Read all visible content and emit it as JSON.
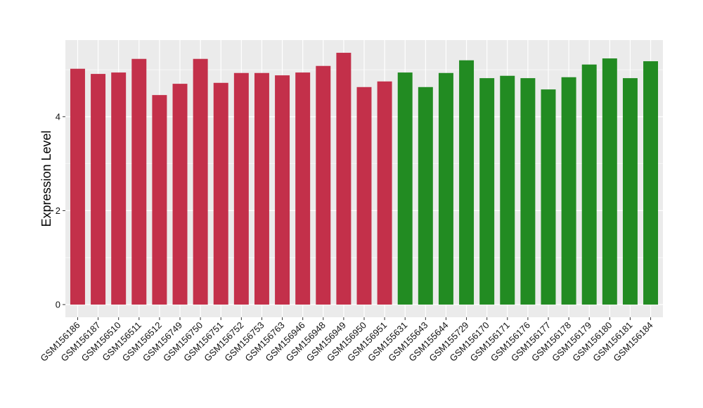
{
  "chart_data": {
    "type": "bar",
    "title": "",
    "xlabel": "",
    "ylabel": "Expression Level",
    "ylim": [
      -0.27,
      5.63
    ],
    "yticks": [
      0,
      2,
      4
    ],
    "grid": true,
    "legend": "none",
    "categories": [
      "GSM156186",
      "GSM156187",
      "GSM156510",
      "GSM156511",
      "GSM156512",
      "GSM156749",
      "GSM156750",
      "GSM156751",
      "GSM156752",
      "GSM156753",
      "GSM156763",
      "GSM156946",
      "GSM156948",
      "GSM156949",
      "GSM156950",
      "GSM156951",
      "GSM155631",
      "GSM155643",
      "GSM155644",
      "GSM155729",
      "GSM156170",
      "GSM156171",
      "GSM156176",
      "GSM156177",
      "GSM156178",
      "GSM156179",
      "GSM156180",
      "GSM156181",
      "GSM156184"
    ],
    "values": [
      5.02,
      4.91,
      4.94,
      5.23,
      4.46,
      4.7,
      5.23,
      4.72,
      4.93,
      4.93,
      4.88,
      4.94,
      5.08,
      5.36,
      4.63,
      4.75,
      4.94,
      4.63,
      4.93,
      5.2,
      4.82,
      4.87,
      4.82,
      4.58,
      4.84,
      5.11,
      5.24,
      4.82,
      5.18
    ],
    "groups": [
      "a",
      "a",
      "a",
      "a",
      "a",
      "a",
      "a",
      "a",
      "a",
      "a",
      "a",
      "a",
      "a",
      "a",
      "a",
      "a",
      "b",
      "b",
      "b",
      "b",
      "b",
      "b",
      "b",
      "b",
      "b",
      "b",
      "b",
      "b",
      "b"
    ],
    "colors": {
      "a": "#C3304A",
      "b": "#228B22"
    },
    "panel_background": "#EBEBEB"
  }
}
